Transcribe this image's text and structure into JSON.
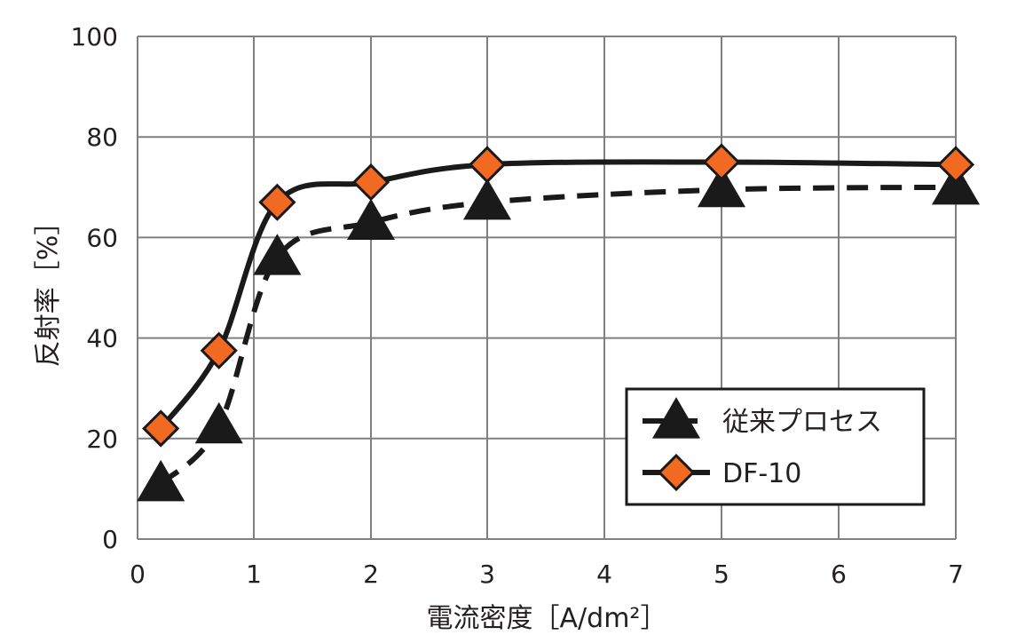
{
  "chart_data": {
    "type": "line",
    "xlabel": "電流密度［A/dm²］",
    "ylabel": "反射率［%］",
    "xlim": [
      0,
      7
    ],
    "ylim": [
      0,
      100
    ],
    "x_ticks": [
      0,
      1,
      2,
      3,
      4,
      5,
      6,
      7
    ],
    "y_ticks": [
      0,
      20,
      40,
      60,
      80,
      100
    ],
    "grid": true,
    "legend_position": "bottom-right",
    "series": [
      {
        "name": "従来プロセス",
        "marker": "triangle",
        "line_style": "dashed",
        "color": "#1a1a1a",
        "x": [
          0.2,
          0.7,
          1.2,
          2,
          3,
          5,
          7
        ],
        "y": [
          11,
          22.5,
          56,
          63,
          67,
          69.5,
          70
        ]
      },
      {
        "name": "DF-10",
        "marker": "diamond",
        "line_style": "solid",
        "color": "#1a1a1a",
        "marker_color": "#f26a21",
        "x": [
          0.2,
          0.7,
          1.2,
          2,
          3,
          5,
          7
        ],
        "y": [
          22,
          37.5,
          67,
          71,
          74.5,
          75,
          74.5
        ]
      }
    ]
  }
}
